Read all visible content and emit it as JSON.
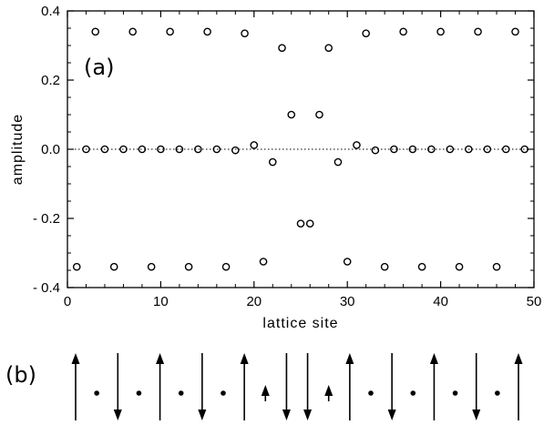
{
  "chart_data": [
    {
      "type": "scatter",
      "panel_label": "(a)",
      "xlabel": "lattice  site",
      "ylabel": "amplitude",
      "xlim": [
        0,
        50
      ],
      "ylim": [
        -0.4,
        0.4
      ],
      "xticks": [
        0,
        10,
        20,
        30,
        40,
        50
      ],
      "yticks": [
        -0.4,
        -0.2,
        0.0,
        0.2,
        0.4
      ],
      "xtick_labels": [
        "0",
        "10",
        "20",
        "30",
        "40",
        "50"
      ],
      "ytick_labels": [
        "- 0.4",
        "- 0.2",
        "0.0",
        "0.2",
        "0.4"
      ],
      "reference_line": {
        "y": 0.0,
        "style": "dotted"
      },
      "marker": "open-circle",
      "series": [
        {
          "x": [
            1,
            2,
            3,
            4,
            5,
            6,
            7,
            8,
            9,
            10,
            11,
            12,
            13,
            14,
            15,
            16,
            17,
            18,
            19,
            20,
            21,
            22,
            23,
            24,
            25,
            26,
            27,
            28,
            29,
            30,
            31,
            32,
            33,
            34,
            35,
            36,
            37,
            38,
            39,
            40,
            41,
            42,
            43,
            44,
            45,
            46,
            47,
            48,
            49
          ],
          "y": [
            -0.34,
            0.0,
            0.34,
            0.0,
            -0.34,
            0.0,
            0.34,
            0.0,
            -0.34,
            0.0,
            0.34,
            0.0,
            -0.34,
            0.0,
            0.34,
            0.0,
            -0.34,
            -0.003,
            0.335,
            0.012,
            -0.325,
            -0.037,
            0.293,
            0.1,
            -0.215,
            -0.215,
            0.1,
            0.293,
            -0.037,
            -0.325,
            0.012,
            0.335,
            -0.003,
            -0.34,
            0.0,
            0.34,
            0.0,
            -0.34,
            0.0,
            0.34,
            0.0,
            -0.34,
            0.0,
            0.34,
            0.0,
            -0.34,
            0.0,
            0.34,
            0.0
          ]
        }
      ]
    },
    {
      "type": "diagram",
      "panel_label": "(b)",
      "sites": [
        "up",
        "dot",
        "down",
        "dot",
        "up",
        "dot",
        "down",
        "dot",
        "up",
        "small-up",
        "down",
        "down",
        "small-up",
        "up",
        "dot",
        "down",
        "dot",
        "up",
        "dot",
        "down",
        "dot",
        "up"
      ]
    }
  ]
}
